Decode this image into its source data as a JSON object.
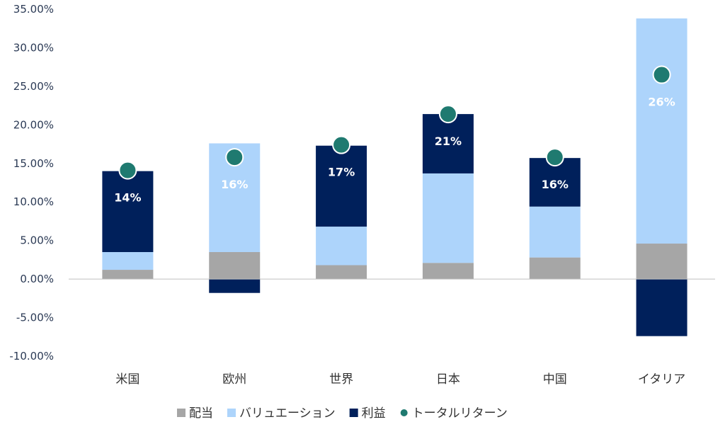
{
  "chart_data": {
    "type": "bar",
    "stacked": true,
    "categories": [
      "米国",
      "欧州",
      "世界",
      "日本",
      "中国",
      "イタリア"
    ],
    "series": [
      {
        "name": "配当",
        "color": "#a6a6a6",
        "values": [
          1.2,
          3.5,
          1.8,
          2.1,
          2.8,
          4.6
        ]
      },
      {
        "name": "バリュエーション",
        "color": "#add4fb",
        "values": [
          2.3,
          14.1,
          5.0,
          11.6,
          6.6,
          29.2
        ]
      },
      {
        "name": "利益",
        "color": "#00205b",
        "values": [
          10.5,
          -1.8,
          10.5,
          7.7,
          6.3,
          -7.4
        ]
      }
    ],
    "total_return": {
      "name": "トータルリターン",
      "color": "#1f7a70",
      "values": [
        14.1,
        15.8,
        17.4,
        21.4,
        15.8,
        26.5
      ],
      "labels": [
        "14%",
        "16%",
        "17%",
        "21%",
        "16%",
        "26%"
      ]
    },
    "y_ticks": [
      "35.00%",
      "30.00%",
      "25.00%",
      "20.00%",
      "15.00%",
      "10.00%",
      "5.00%",
      "0.00%",
      "-5.00%",
      "-10.00%"
    ],
    "ylim": [
      -10,
      35
    ],
    "legend_position": "bottom",
    "grid": false
  }
}
